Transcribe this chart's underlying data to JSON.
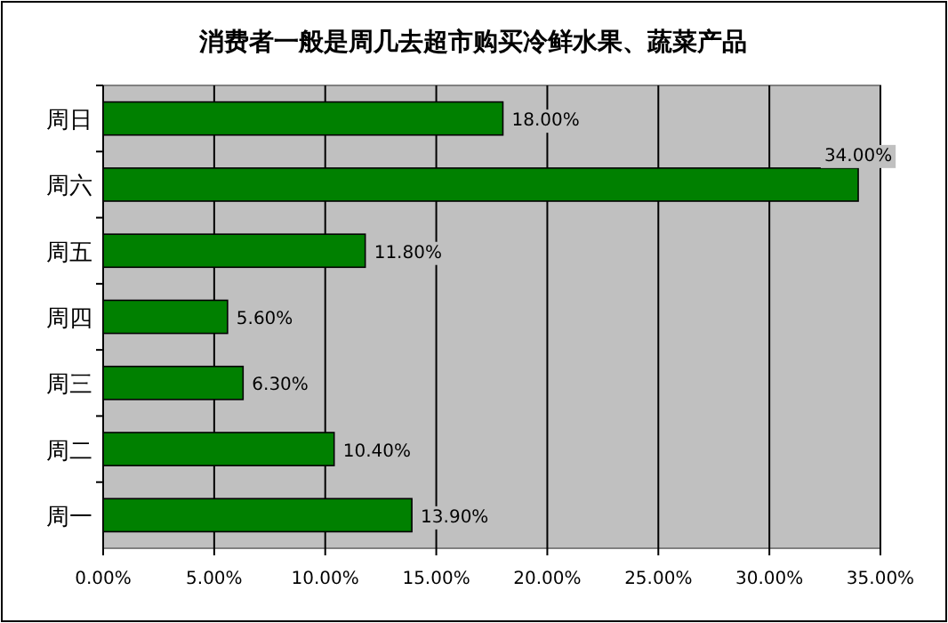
{
  "chart_data": {
    "type": "bar",
    "orientation": "horizontal",
    "title": "消费者一般是周几去超市购买冷鲜水果、蔬菜产品",
    "categories": [
      "周日",
      "周六",
      "周五",
      "周四",
      "周三",
      "周二",
      "周一"
    ],
    "values": [
      18,
      34,
      11.8,
      5.6,
      6.3,
      10.4,
      13.9
    ],
    "value_labels": [
      "18.00%",
      "34.00%",
      "11.80%",
      "5.60%",
      "6.30%",
      "10.40%",
      "13.90%"
    ],
    "color": "#008000",
    "xlim": [
      0,
      35
    ],
    "xticks": [
      {
        "value": 0,
        "label": "0.00%"
      },
      {
        "value": 5,
        "label": "5.00%"
      },
      {
        "value": 10,
        "label": "10.00%"
      },
      {
        "value": 15,
        "label": "15.00%"
      },
      {
        "value": 20,
        "label": "20.00%"
      },
      {
        "value": 25,
        "label": "25.00%"
      },
      {
        "value": 30,
        "label": "30.00%"
      },
      {
        "value": 35,
        "label": "35.00%"
      }
    ],
    "grid": "x"
  }
}
